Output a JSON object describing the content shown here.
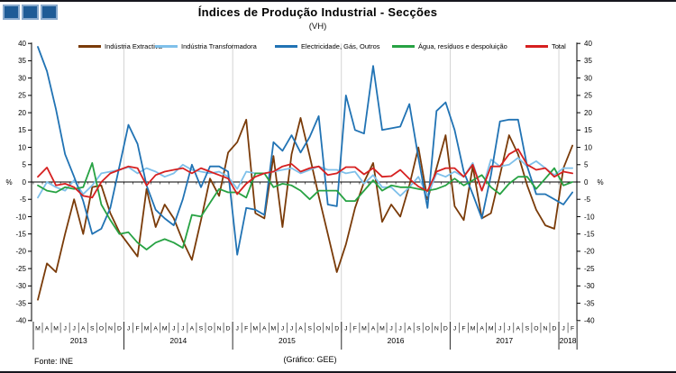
{
  "header": {
    "title": "Índices de Produção Industrial - Secções",
    "subtitle": "(VH)"
  },
  "logo": {
    "squares": 3,
    "color": "#1e5b96"
  },
  "legend": [
    {
      "label": "Indústria Extractiva",
      "color": "#7a3b09"
    },
    {
      "label": "Indústria Transformadora",
      "color": "#7fc0ea"
    },
    {
      "label": "Electricidade, Gás, Outros",
      "color": "#2173b4"
    },
    {
      "label": "Água, resíduos e despoluição",
      "color": "#27a243"
    },
    {
      "label": "Total",
      "color": "#d62020"
    }
  ],
  "footer": {
    "source": "Fonte: INE",
    "credit": "(Gráfico: GEE)"
  },
  "chart_data": {
    "type": "line",
    "title": "Índices de Produção Industrial - Secções",
    "subtitle": "(VH)",
    "y_axis_unit": "%",
    "ylim": [
      -40,
      40
    ],
    "ytick_step": 5,
    "grid": "year-dividers-only",
    "legend_position": "top",
    "x_months": [
      "M",
      "A",
      "M",
      "J",
      "J",
      "A",
      "S",
      "O",
      "N",
      "D",
      "J",
      "F",
      "M",
      "A",
      "M",
      "J",
      "J",
      "A",
      "S",
      "O",
      "N",
      "D",
      "J",
      "F",
      "M",
      "A",
      "M",
      "J",
      "J",
      "A",
      "S",
      "O",
      "N",
      "D",
      "J",
      "F",
      "M",
      "A",
      "M",
      "J",
      "J",
      "A",
      "S",
      "O",
      "N",
      "D",
      "J",
      "F",
      "M",
      "A",
      "M",
      "J",
      "J",
      "A",
      "S",
      "O",
      "N",
      "D",
      "J",
      "F"
    ],
    "years": [
      {
        "label": "2013",
        "months": 10
      },
      {
        "label": "2014",
        "months": 12
      },
      {
        "label": "2015",
        "months": 12
      },
      {
        "label": "2016",
        "months": 12
      },
      {
        "label": "2017",
        "months": 12
      },
      {
        "label": "2018",
        "months": 2
      }
    ],
    "series": [
      {
        "id": "industria-extractiva",
        "name": "Indústria Extractiva",
        "color": "#7a3b09",
        "values": [
          -34,
          -23.5,
          -26,
          -15,
          -5,
          -15,
          -1.5,
          -1,
          -9,
          -14.5,
          -18,
          -21.5,
          -2,
          -13,
          -6.5,
          -10.5,
          -17,
          -22.5,
          -11,
          1,
          -4,
          8.5,
          11.5,
          18,
          -9,
          -10.5,
          7.5,
          -13,
          8,
          18.5,
          7.5,
          -4,
          -15,
          -26,
          -18,
          -7.5,
          0,
          5.5,
          -11.5,
          -6.5,
          -10,
          -1,
          10,
          -5,
          4,
          13.5,
          -7,
          -11,
          4.5,
          -10.5,
          -9,
          2,
          13.5,
          8,
          -1,
          -8,
          -12.5,
          -13.5,
          4,
          10.5
        ]
      },
      {
        "id": "industria-transformadora",
        "name": "Indústria Transformadora",
        "color": "#7fc0ea",
        "values": [
          -4.5,
          0,
          -1.5,
          -2.5,
          0.5,
          -3.5,
          -1,
          2.5,
          3,
          3.5,
          4.3,
          2.5,
          4,
          3,
          1.5,
          2.5,
          5,
          3.5,
          3,
          2.5,
          3,
          1.5,
          -2,
          3,
          2.5,
          2.5,
          3,
          3.5,
          4,
          2.5,
          3.5,
          4.5,
          3.5,
          3.5,
          2.5,
          3,
          -0.5,
          2,
          -1.5,
          -1.5,
          -4,
          -1.5,
          1.5,
          -4,
          2.5,
          1.5,
          3,
          1.5,
          5.5,
          -2.5,
          6.5,
          4.5,
          5,
          7,
          4.5,
          6,
          4,
          2,
          4,
          4
        ]
      },
      {
        "id": "electricidade-gas-outros",
        "name": "Electricidade, Gás, Outros",
        "color": "#2173b4",
        "values": [
          39,
          32,
          21,
          8,
          1.5,
          -5.5,
          -15,
          -13.5,
          -7.5,
          4.5,
          16.5,
          11,
          -1,
          -8,
          -10.5,
          -12.5,
          -5,
          5,
          -1.5,
          4.5,
          4.5,
          3,
          -21,
          -7.5,
          -8,
          -9.5,
          11.5,
          9,
          13.5,
          8.5,
          13,
          19,
          -6.5,
          -7,
          25,
          15,
          14,
          33.5,
          15,
          15.5,
          16,
          22.5,
          7,
          -7.5,
          20.5,
          23,
          15,
          3,
          -3.5,
          -10.5,
          2,
          17.5,
          18,
          18,
          4.5,
          -3.5,
          -3.5,
          -5,
          -6.5,
          -3
        ]
      },
      {
        "id": "agua-residuos-despoluicao",
        "name": "Água, resíduos e despoluição",
        "color": "#27a243",
        "values": [
          -1,
          -2.5,
          -3,
          -1.5,
          -2,
          -1.5,
          5.5,
          -6.5,
          -11,
          -15,
          -14.5,
          -17.5,
          -19.5,
          -17.5,
          -16.5,
          -17.5,
          -19,
          -9.5,
          -10,
          -6,
          -2,
          -3,
          -3,
          -4.5,
          2.5,
          2.5,
          -1.5,
          -0.5,
          -1,
          -2.5,
          -5,
          -2.5,
          -2.5,
          -2.5,
          -5.5,
          -5.5,
          -2.5,
          0.5,
          -2.5,
          -1,
          -1.5,
          -1.5,
          -2,
          -2.5,
          -2,
          -1,
          1,
          -1,
          0.5,
          2,
          -1.5,
          -3.5,
          -0.5,
          1.5,
          1.5,
          -2,
          1,
          4,
          -1,
          0
        ]
      },
      {
        "id": "total",
        "name": "Total",
        "color": "#d62020",
        "values": [
          1.5,
          4.2,
          -1,
          -0.5,
          -1.5,
          -4,
          -4.5,
          0,
          2.5,
          3.5,
          4.5,
          4,
          -1,
          2,
          3,
          3.5,
          4,
          2.5,
          4,
          3,
          2,
          1,
          -3.5,
          -0.5,
          1.5,
          2.5,
          3,
          4.5,
          5.2,
          3,
          4,
          4.5,
          2,
          2.5,
          4.3,
          4.3,
          2.2,
          4,
          1.5,
          1.7,
          3.5,
          0.9,
          -1.3,
          -2.6,
          3,
          4,
          4,
          1.5,
          5,
          -2.5,
          4.5,
          4.5,
          8,
          9.5,
          5,
          3.5,
          4,
          1.5,
          3,
          2.5
        ]
      }
    ]
  }
}
